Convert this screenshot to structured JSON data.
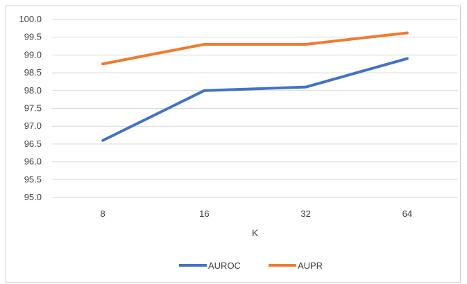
{
  "chart_data": {
    "type": "line",
    "title_fragment": "(%)",
    "categories": [
      "8",
      "16",
      "32",
      "64"
    ],
    "series": [
      {
        "name": "AUROC",
        "values": [
          96.6,
          98.0,
          98.1,
          98.9
        ],
        "color": "#4472c4"
      },
      {
        "name": "AUPR",
        "values": [
          98.75,
          99.3,
          99.3,
          99.62
        ],
        "color": "#ed7d31"
      }
    ],
    "xlabel": "K",
    "ylabel": "",
    "ylim": [
      95.0,
      100.0
    ],
    "ytick_step": 0.5,
    "ytick_labels": [
      "95.0",
      "95.5",
      "96.0",
      "96.5",
      "97.0",
      "97.5",
      "98.0",
      "98.5",
      "99.0",
      "99.5",
      "100.0"
    ],
    "grid": true,
    "legend": "bottom"
  }
}
